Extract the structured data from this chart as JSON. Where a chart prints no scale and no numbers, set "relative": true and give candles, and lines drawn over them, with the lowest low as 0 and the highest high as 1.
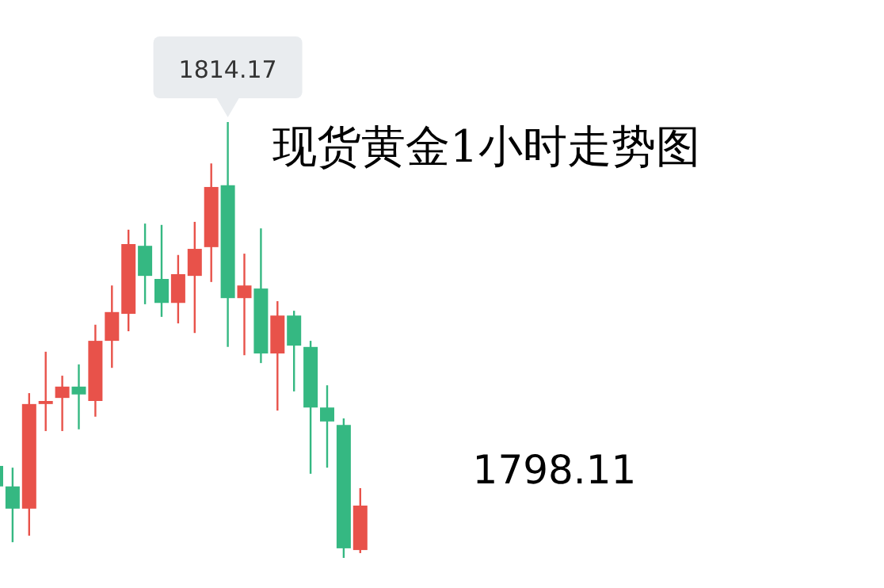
{
  "chart_data": {
    "type": "candlestick",
    "title": "现货黄金1小时走势图",
    "relative": true,
    "categories": [
      null,
      null,
      null,
      null,
      null,
      null,
      null,
      null,
      null,
      null,
      null,
      null,
      null,
      null,
      null,
      null,
      null,
      null,
      null,
      null,
      null,
      null,
      null
    ],
    "ohlc": [
      [
        0.211,
        0.218,
        0.153,
        0.164
      ],
      [
        0.164,
        0.207,
        0.036,
        0.113
      ],
      [
        0.113,
        0.378,
        0.051,
        0.353
      ],
      [
        0.353,
        0.473,
        0.291,
        0.36
      ],
      [
        0.367,
        0.418,
        0.291,
        0.393
      ],
      [
        0.393,
        0.444,
        0.295,
        0.375
      ],
      [
        0.36,
        0.535,
        0.324,
        0.498
      ],
      [
        0.498,
        0.625,
        0.436,
        0.564
      ],
      [
        0.56,
        0.753,
        0.52,
        0.72
      ],
      [
        0.716,
        0.767,
        0.582,
        0.647
      ],
      [
        0.64,
        0.764,
        0.553,
        0.585
      ],
      [
        0.585,
        0.695,
        0.538,
        0.651
      ],
      [
        0.647,
        0.771,
        0.516,
        0.709
      ],
      [
        0.713,
        0.905,
        0.633,
        0.851
      ],
      [
        0.855,
        1,
        0.484,
        0.596
      ],
      [
        0.596,
        0.698,
        0.465,
        0.625
      ],
      [
        0.618,
        0.756,
        0.447,
        0.469
      ],
      [
        0.469,
        0.589,
        0.338,
        0.556
      ],
      [
        0.556,
        0.567,
        0.382,
        0.487
      ],
      [
        0.484,
        0.498,
        0.193,
        0.345
      ],
      [
        0.345,
        0.396,
        0.207,
        0.313
      ],
      [
        0.305,
        0.32,
        0,
        0.022
      ],
      [
        0.018,
        0.16,
        0.011,
        0.12
      ]
    ],
    "colors": [
      "#35b882",
      "#35b882",
      "#e8524a",
      "#e8524a",
      "#e8524a",
      "#35b882",
      "#e8524a",
      "#e8524a",
      "#e8524a",
      "#35b882",
      "#35b882",
      "#e8524a",
      "#e8524a",
      "#e8524a",
      "#35b882",
      "#e8524a",
      "#35b882",
      "#e8524a",
      "#35b882",
      "#35b882",
      "#35b882",
      "#35b882",
      "#e8524a"
    ],
    "annotations": [
      "1814.17",
      "1798.11"
    ]
  }
}
